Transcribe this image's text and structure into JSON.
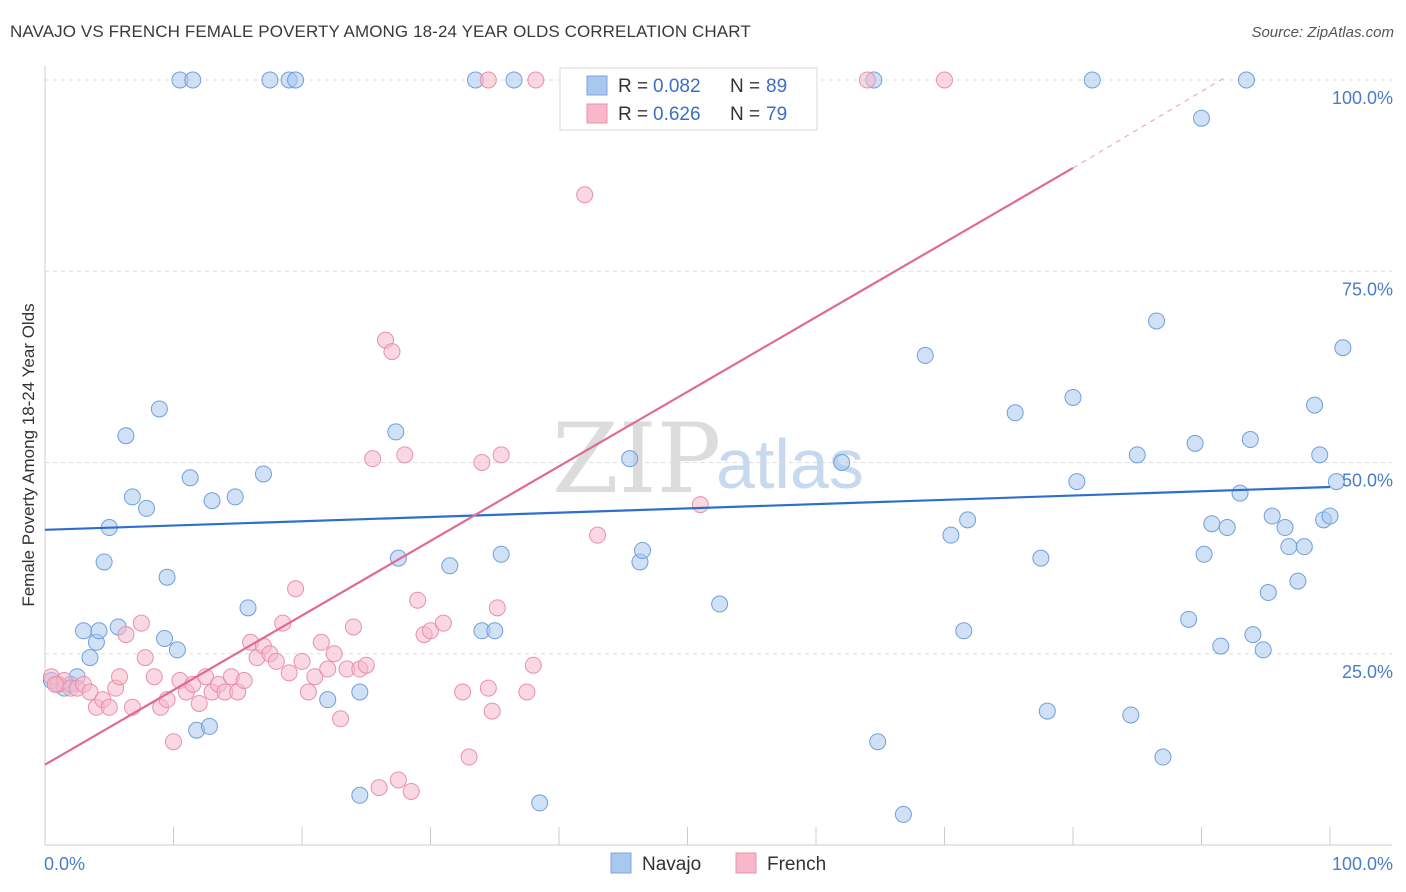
{
  "title": "NAVAJO VS FRENCH FEMALE POVERTY AMONG 18-24 YEAR OLDS CORRELATION CHART",
  "source": "Source: ZipAtlas.com",
  "watermark": {
    "zip": "ZIP",
    "atlas": "atlas"
  },
  "legend": {
    "r_label": "R =",
    "n_label": "N =",
    "items": [
      {
        "name": "Navajo",
        "r": "0.082",
        "n": "89"
      },
      {
        "name": "French",
        "r": "0.626",
        "n": "79"
      }
    ]
  },
  "bottom_legend": [
    "Navajo",
    "French"
  ],
  "chart_data": {
    "type": "scatter",
    "xlabel": "",
    "ylabel": "Female Poverty Among 18-24 Year Olds",
    "xlim": [
      0,
      100
    ],
    "ylim": [
      0,
      100
    ],
    "x_tick_labels": [
      "0.0%",
      "100.0%"
    ],
    "y_tick_labels": [
      "25.0%",
      "50.0%",
      "75.0%",
      "100.0%"
    ],
    "y_ticks": [
      25,
      50,
      75,
      100
    ],
    "grid": true,
    "colors": {
      "Navajo": "#a9c8ef",
      "Navajo_line": "#2e6fcd",
      "French": "#f6b8ca",
      "French_line": "#e06a94"
    },
    "series": [
      {
        "name": "Navajo",
        "trend": {
          "x": [
            0,
            100
          ],
          "y": [
            41.2,
            46.8
          ]
        },
        "points": [
          [
            0.5,
            21.5
          ],
          [
            1,
            21
          ],
          [
            1.5,
            20.5
          ],
          [
            2,
            21
          ],
          [
            2.5,
            22
          ],
          [
            3,
            28
          ],
          [
            3.5,
            24.5
          ],
          [
            4,
            26.5
          ],
          [
            4.2,
            28
          ],
          [
            4.6,
            37
          ],
          [
            5,
            41.5
          ],
          [
            5.7,
            28.5
          ],
          [
            6.3,
            53.5
          ],
          [
            6.8,
            45.5
          ],
          [
            7.9,
            44
          ],
          [
            8.9,
            57
          ],
          [
            9.5,
            35
          ],
          [
            9.3,
            27
          ],
          [
            10.3,
            25.5
          ],
          [
            11.3,
            48
          ],
          [
            11.8,
            15
          ],
          [
            13,
            45
          ],
          [
            12.8,
            15.5
          ],
          [
            14.8,
            45.5
          ],
          [
            15.8,
            31
          ],
          [
            17,
            48.5
          ],
          [
            10.5,
            100
          ],
          [
            11.5,
            100
          ],
          [
            17.5,
            100
          ],
          [
            19,
            100
          ],
          [
            19.5,
            100
          ],
          [
            22,
            19
          ],
          [
            24.5,
            20
          ],
          [
            24.5,
            6.5
          ],
          [
            27.3,
            54
          ],
          [
            27.5,
            37.5
          ],
          [
            31.5,
            36.5
          ],
          [
            33.5,
            100
          ],
          [
            34,
            28
          ],
          [
            35,
            28
          ],
          [
            35.5,
            38
          ],
          [
            36.5,
            100
          ],
          [
            38.5,
            5.5
          ],
          [
            45.5,
            50.5
          ],
          [
            46.3,
            37
          ],
          [
            46.5,
            38.5
          ],
          [
            52.5,
            31.5
          ],
          [
            56,
            100
          ],
          [
            62,
            50
          ],
          [
            64.5,
            100
          ],
          [
            64.8,
            13.5
          ],
          [
            66.8,
            4
          ],
          [
            68.5,
            64
          ],
          [
            70.5,
            40.5
          ],
          [
            71.5,
            28
          ],
          [
            71.8,
            42.5
          ],
          [
            75.5,
            56.5
          ],
          [
            77.5,
            37.5
          ],
          [
            78,
            17.5
          ],
          [
            80,
            58.5
          ],
          [
            80.3,
            47.5
          ],
          [
            84.5,
            17
          ],
          [
            85,
            51
          ],
          [
            86.5,
            68.5
          ],
          [
            87,
            11.5
          ],
          [
            89,
            29.5
          ],
          [
            89.5,
            52.5
          ],
          [
            90,
            95
          ],
          [
            90.2,
            38
          ],
          [
            90.8,
            42
          ],
          [
            91.5,
            26
          ],
          [
            92,
            41.5
          ],
          [
            93,
            46
          ],
          [
            93.5,
            100
          ],
          [
            93.8,
            53
          ],
          [
            94,
            27.5
          ],
          [
            94.8,
            25.5
          ],
          [
            95.2,
            33
          ],
          [
            95.5,
            43
          ],
          [
            96.5,
            41.5
          ],
          [
            96.8,
            39
          ],
          [
            97.5,
            34.5
          ],
          [
            98,
            39
          ],
          [
            98.8,
            57.5
          ],
          [
            99.2,
            51
          ],
          [
            99.5,
            42.5
          ],
          [
            100,
            43
          ],
          [
            100.5,
            47.5
          ],
          [
            101,
            65
          ],
          [
            81.5,
            100
          ]
        ]
      },
      {
        "name": "French",
        "trend": {
          "x": [
            0,
            80
          ],
          "y": [
            10.5,
            88.5
          ]
        },
        "trend_ext": {
          "x": [
            80,
            92
          ],
          "y": [
            88.5,
            100.5
          ]
        },
        "points": [
          [
            0.5,
            22
          ],
          [
            1,
            21
          ],
          [
            1.5,
            21.5
          ],
          [
            2,
            20.5
          ],
          [
            2.5,
            20.5
          ],
          [
            3,
            21
          ],
          [
            3.5,
            20
          ],
          [
            4,
            18
          ],
          [
            4.5,
            19
          ],
          [
            5,
            18
          ],
          [
            5.5,
            20.5
          ],
          [
            5.8,
            22
          ],
          [
            6.3,
            27.5
          ],
          [
            6.8,
            18
          ],
          [
            7.5,
            29
          ],
          [
            7.8,
            24.5
          ],
          [
            8.5,
            22
          ],
          [
            9,
            18
          ],
          [
            9.5,
            19
          ],
          [
            10,
            13.5
          ],
          [
            10.5,
            21.5
          ],
          [
            11,
            20
          ],
          [
            11.5,
            21
          ],
          [
            12,
            18.5
          ],
          [
            12.5,
            22
          ],
          [
            13,
            20
          ],
          [
            13.5,
            21
          ],
          [
            14,
            20
          ],
          [
            14.5,
            22
          ],
          [
            15,
            20
          ],
          [
            15.5,
            21.5
          ],
          [
            16,
            26.5
          ],
          [
            16.5,
            24.5
          ],
          [
            17,
            26
          ],
          [
            17.5,
            25
          ],
          [
            18,
            24
          ],
          [
            18.5,
            29
          ],
          [
            19,
            22.5
          ],
          [
            19.5,
            33.5
          ],
          [
            20,
            24
          ],
          [
            20.5,
            20
          ],
          [
            21,
            22
          ],
          [
            21.5,
            26.5
          ],
          [
            22,
            23
          ],
          [
            22.5,
            25
          ],
          [
            23,
            16.5
          ],
          [
            23.5,
            23
          ],
          [
            24,
            28.5
          ],
          [
            24.5,
            23
          ],
          [
            25,
            23.5
          ],
          [
            25.5,
            50.5
          ],
          [
            26,
            7.5
          ],
          [
            26.5,
            66
          ],
          [
            27,
            64.5
          ],
          [
            27.5,
            8.5
          ],
          [
            28,
            51
          ],
          [
            28.5,
            7
          ],
          [
            29,
            32
          ],
          [
            29.5,
            27.5
          ],
          [
            30,
            28
          ],
          [
            31,
            29
          ],
          [
            32.5,
            20
          ],
          [
            33,
            11.5
          ],
          [
            34,
            50
          ],
          [
            34.5,
            20.5
          ],
          [
            34.8,
            17.5
          ],
          [
            35.2,
            31
          ],
          [
            35.5,
            51
          ],
          [
            37.5,
            20
          ],
          [
            38,
            23.5
          ],
          [
            38.2,
            100
          ],
          [
            34.5,
            100
          ],
          [
            41,
            100
          ],
          [
            42,
            85
          ],
          [
            43,
            40.5
          ],
          [
            51,
            44.5
          ],
          [
            64,
            100
          ],
          [
            70,
            100
          ],
          [
            0.8,
            21
          ]
        ]
      }
    ]
  }
}
